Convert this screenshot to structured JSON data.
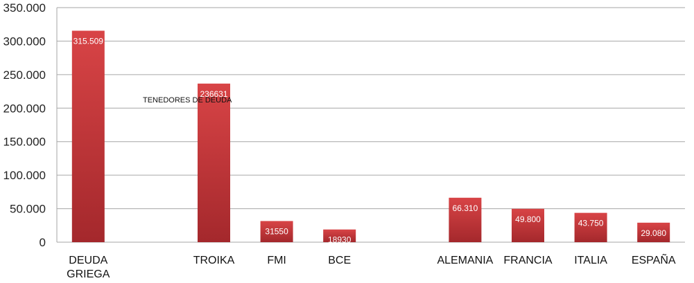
{
  "chart_data": {
    "type": "bar",
    "categories": [
      "DEUDA GRIEGA",
      "",
      "TROIKA",
      "FMI",
      "BCE",
      "",
      "ALEMANIA",
      "FRANCIA",
      "ITALIA",
      "ESPAÑA"
    ],
    "category_lines": [
      [
        "DEUDA",
        "GRIEGA"
      ],
      [],
      [
        "TROIKA"
      ],
      [
        "FMI"
      ],
      [
        "BCE"
      ],
      [],
      [
        "ALEMANIA"
      ],
      [
        "FRANCIA"
      ],
      [
        "ITALIA"
      ],
      [
        "ESPAÑA"
      ]
    ],
    "values": [
      315509,
      null,
      236631,
      31550,
      18930,
      null,
      66310,
      49800,
      43750,
      29080
    ],
    "data_labels": [
      "315.509",
      "",
      "236631",
      "31550",
      "18930",
      "",
      "66.310",
      "49.800",
      "43.750",
      "29.080"
    ],
    "yticks": [
      0,
      50000,
      100000,
      150000,
      200000,
      250000,
      300000,
      350000
    ],
    "ytick_labels": [
      "0",
      "50.000",
      "100.000",
      "150.000",
      "200.000",
      "250.000",
      "300.000",
      "350.000"
    ],
    "ylim": [
      0,
      350000
    ],
    "grid": true,
    "annotation": "TENEDORES DE DEUDA",
    "colors": {
      "bar_top": "#d84446",
      "bar_bottom": "#a4282c",
      "grid": "#a6a6a6"
    }
  }
}
